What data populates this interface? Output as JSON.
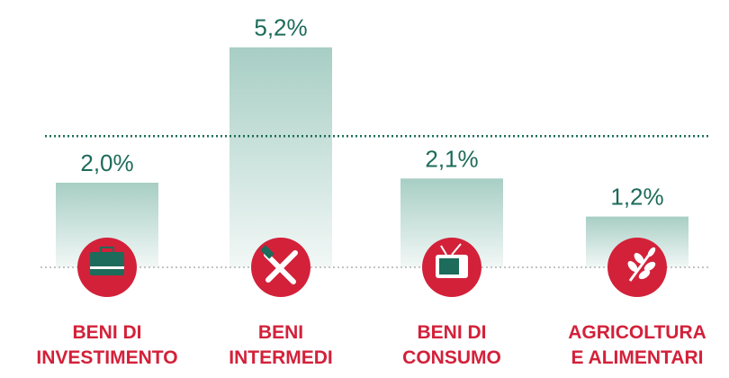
{
  "chart_data": {
    "type": "bar",
    "categories": [
      "BENI DI\nINVESTIMENTO",
      "BENI\nINTERMEDI",
      "BENI DI\nCONSUMO",
      "AGRICOLTURA\nE ALIMENTARI"
    ],
    "values": [
      2.0,
      5.2,
      2.1,
      1.2
    ],
    "value_labels": [
      "2,0%",
      "5,2%",
      "2,1%",
      "1,2%"
    ],
    "reference": 3.1,
    "color": "#a7cec4",
    "ylim": [
      0,
      6
    ]
  }
}
